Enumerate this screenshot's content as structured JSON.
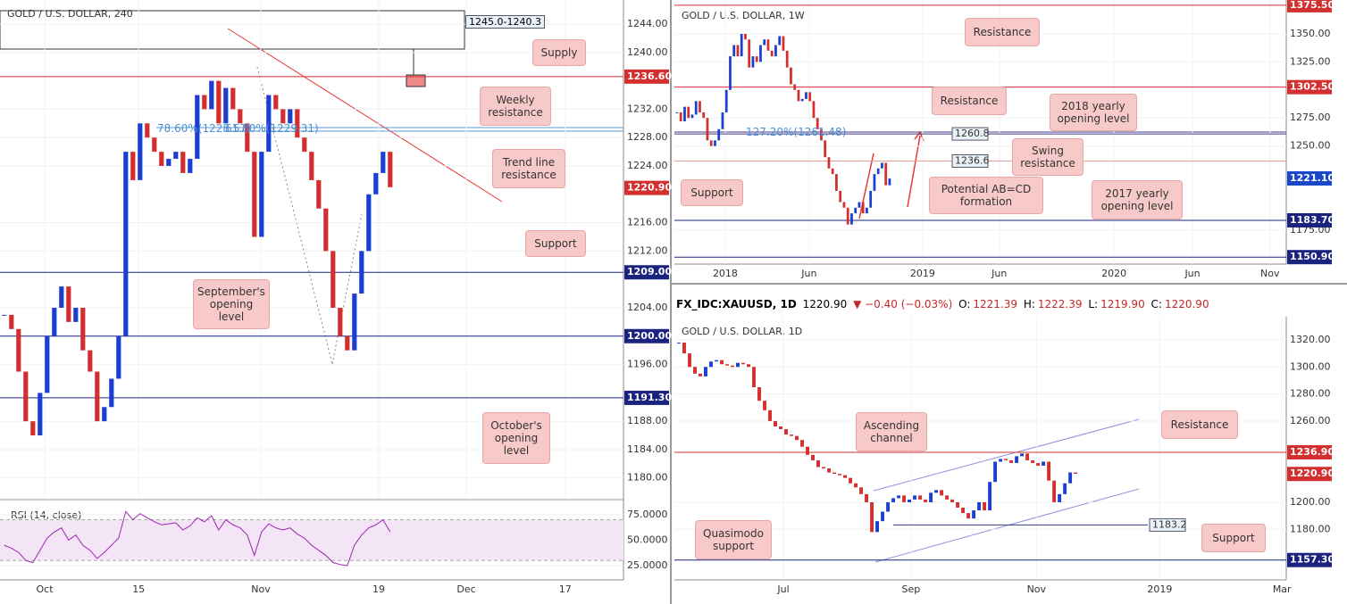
{
  "chart_data": [
    {
      "type": "candlestick",
      "title": "GOLD / U.S. DOLLAR, 240",
      "values": [
        1203,
        1201,
        1195,
        1188,
        1186,
        1192,
        1200,
        1204,
        1207,
        1202,
        1204,
        1198,
        1195,
        1188,
        1190,
        1194,
        1200,
        1226,
        1222,
        1230,
        1228,
        1226,
        1224,
        1225,
        1226,
        1223,
        1225,
        1234,
        1232,
        1236,
        1230,
        1235,
        1232,
        1230,
        1226,
        1214,
        1226,
        1234,
        1232,
        1230,
        1232,
        1228,
        1226,
        1222,
        1218,
        1212,
        1204,
        1200,
        1198,
        1206,
        1212,
        1220,
        1223,
        1226,
        1221
      ],
      "xlim": [
        -0.6,
        86.65
      ],
      "xticks": [
        {
          "value": 5.65,
          "label": "Oct"
        },
        {
          "value": 18.8,
          "label": "15"
        },
        {
          "value": 35.9,
          "label": "Nov"
        },
        {
          "value": 52.4,
          "label": "19"
        },
        {
          "value": 64.65,
          "label": "Dec"
        },
        {
          "value": 78.5,
          "label": "17"
        }
      ],
      "ylim": [
        1177.2,
        1247.4
      ],
      "yticks": [
        {
          "value": 1244,
          "label": "1244.00"
        },
        {
          "value": 1240,
          "label": "1240.00"
        },
        {
          "value": 1232,
          "label": "1232.00"
        },
        {
          "value": 1228,
          "label": "1228.00"
        },
        {
          "value": 1224,
          "label": "1224.00"
        },
        {
          "value": 1216,
          "label": "1216.00"
        },
        {
          "value": 1212,
          "label": "1212.00"
        },
        {
          "value": 1204,
          "label": "1204.00"
        },
        {
          "value": 1196,
          "label": "1196.00"
        },
        {
          "value": 1188,
          "label": "1188.00"
        },
        {
          "value": 1184,
          "label": "1184.00"
        },
        {
          "value": 1180,
          "label": "1180.00"
        }
      ],
      "levels": [
        {
          "value": 1236.6,
          "label": "1236.60",
          "color": "#d32f2f"
        },
        {
          "value": 1209,
          "label": "1209.00",
          "color": "#1a237e"
        },
        {
          "value": 1200,
          "label": "1200.00",
          "color": "#1a237e"
        },
        {
          "value": 1191.3,
          "label": "1191.30",
          "color": "#1a237e"
        }
      ],
      "last": {
        "value": 1220.9,
        "label": "1220.90",
        "color": "#d32f2f"
      },
      "annotations": [
        "Supply",
        "Weekly resistance",
        "Trend line resistance",
        "Support",
        "September's opening level",
        "October's opening level",
        "1245.0-1240.3"
      ],
      "fib_labels": [
        "78.60%(1228.57)",
        "61.80%(1229.31)"
      ]
    },
    {
      "type": "line",
      "title": "RSI (14, close)",
      "values": [
        45,
        42,
        38,
        30,
        28,
        40,
        52,
        58,
        62,
        50,
        55,
        45,
        40,
        32,
        38,
        45,
        52,
        78,
        70,
        76,
        72,
        68,
        65,
        66,
        67,
        60,
        64,
        72,
        68,
        74,
        60,
        70,
        65,
        62,
        55,
        35,
        58,
        66,
        62,
        60,
        62,
        56,
        52,
        45,
        40,
        35,
        28,
        26,
        25,
        45,
        55,
        62,
        65,
        70,
        58
      ],
      "color": "#9c27b0",
      "band": [
        30,
        70
      ],
      "xlim": [
        -0.6,
        86.65
      ],
      "ylim": [
        12.7,
        88
      ],
      "yticks": [
        {
          "value": 75,
          "label": "75.0000"
        },
        {
          "value": 50,
          "label": "50.0000"
        },
        {
          "value": 25,
          "label": "25.0000"
        }
      ]
    },
    {
      "type": "candlestick",
      "title": "GOLD / U.S. DOLLAR, 1W",
      "values": [
        1280,
        1272,
        1285,
        1275,
        1278,
        1290,
        1280,
        1275,
        1255,
        1250,
        1255,
        1265,
        1280,
        1300,
        1330,
        1340,
        1330,
        1350,
        1345,
        1320,
        1330,
        1325,
        1340,
        1345,
        1335,
        1330,
        1340,
        1348,
        1335,
        1320,
        1305,
        1300,
        1290,
        1292,
        1298,
        1290,
        1275,
        1265,
        1255,
        1240,
        1230,
        1225,
        1210,
        1200,
        1195,
        1180,
        1190,
        1195,
        1200,
        1190,
        1195,
        1210,
        1225,
        1230,
        1235,
        1215,
        1221
      ],
      "xlim": [
        -0.7,
        160.5
      ],
      "xticks": [
        {
          "value": 12.7,
          "label": "2018"
        },
        {
          "value": 34.8,
          "label": "Jun"
        },
        {
          "value": 64.7,
          "label": "2019"
        },
        {
          "value": 84.9,
          "label": "Jun"
        },
        {
          "value": 115.1,
          "label": "2020"
        },
        {
          "value": 135.8,
          "label": "Jun"
        },
        {
          "value": 156.2,
          "label": "Nov"
        }
      ],
      "ylim": [
        1144.7,
        1380.2
      ],
      "yticks": [
        {
          "value": 1350,
          "label": "1350.00"
        },
        {
          "value": 1325,
          "label": "1325.00"
        },
        {
          "value": 1275,
          "label": "1275.00"
        },
        {
          "value": 1250,
          "label": "1250.00"
        },
        {
          "value": 1175,
          "label": "1175.00"
        }
      ],
      "levels": [
        {
          "value": 1375.5,
          "label": "1375.50",
          "color": "#d32f2f"
        },
        {
          "value": 1302.5,
          "label": "1302.50",
          "color": "#d32f2f"
        },
        {
          "value": 1183.7,
          "label": "1183.70",
          "color": "#1a237e"
        },
        {
          "value": 1150.9,
          "label": "1150.90",
          "color": "#1a237e"
        }
      ],
      "last": {
        "value": 1221.1,
        "label": "1221.10",
        "color": "#1848c8"
      },
      "inline_levels": [
        1260.8,
        1236.6
      ],
      "inline_colors": [
        "#3a3a8a",
        "#ef9a9a"
      ],
      "annotations": [
        "Resistance",
        "Resistance",
        "2018 yearly opening level",
        "Swing resistance",
        "Potential AB=CD formation",
        "Support",
        "2017 yearly opening level"
      ],
      "fib_labels": [
        "127.20%(1261.48)"
      ]
    },
    {
      "type": "candlestick",
      "title": "GOLD / U.S. DOLLAR, 1D",
      "values": [
        1318,
        1310,
        1300,
        1295,
        1293,
        1300,
        1304,
        1305,
        1302,
        1301,
        1300,
        1303,
        1302,
        1300,
        1285,
        1275,
        1268,
        1260,
        1256,
        1254,
        1250,
        1249,
        1246,
        1241,
        1235,
        1231,
        1226,
        1225,
        1222,
        1221,
        1220,
        1218,
        1214,
        1211,
        1206,
        1200,
        1178,
        1186,
        1193,
        1200,
        1203,
        1205,
        1200,
        1202,
        1205,
        1202,
        1200,
        1207,
        1209,
        1205,
        1202,
        1200,
        1196,
        1192,
        1188,
        1194,
        1200,
        1194,
        1215,
        1230,
        1232,
        1231,
        1229,
        1234,
        1236,
        1231,
        1229,
        1227,
        1230,
        1216,
        1200,
        1206,
        1214,
        1222,
        1221
      ],
      "xlim": [
        -0.83,
        113.3
      ],
      "xticks": [
        {
          "value": 19.5,
          "label": "Jul"
        },
        {
          "value": 43.3,
          "label": "Sep"
        },
        {
          "value": 66.7,
          "label": "Nov"
        },
        {
          "value": 89.7,
          "label": "2019"
        },
        {
          "value": 112.5,
          "label": "Mar"
        }
      ],
      "ylim": [
        1142.6,
        1337.1
      ],
      "yticks": [
        {
          "value": 1320,
          "label": "1320.00"
        },
        {
          "value": 1300,
          "label": "1300.00"
        },
        {
          "value": 1280,
          "label": "1280.00"
        },
        {
          "value": 1260,
          "label": "1260.00"
        },
        {
          "value": 1200,
          "label": "1200.00"
        },
        {
          "value": 1180,
          "label": "1180.00"
        }
      ],
      "levels": [
        {
          "value": 1236.9,
          "label": "1236.90",
          "color": "#d32f2f"
        },
        {
          "value": 1157.3,
          "label": "1157.30",
          "color": "#1a237e"
        }
      ],
      "last": {
        "value": 1220.9,
        "label": "1220.90",
        "color": "#d32f2f"
      },
      "inline_levels": [
        1183.2
      ],
      "inline_colors": [
        "#3a3a8a"
      ],
      "annotations": [
        "Ascending channel",
        "Resistance",
        "Quasimodo support",
        "Support"
      ]
    }
  ],
  "header": {
    "symbol": "FX_IDC:XAUUSD, 1D",
    "price": "1220.90",
    "change": "▼ −0.40 (−0.03%)",
    "open_label": "O:",
    "open": "1221.39",
    "high_label": "H:",
    "high": "1222.39",
    "low_label": "L:",
    "low": "1219.90",
    "close_label": "C:",
    "close": "1220.90"
  }
}
